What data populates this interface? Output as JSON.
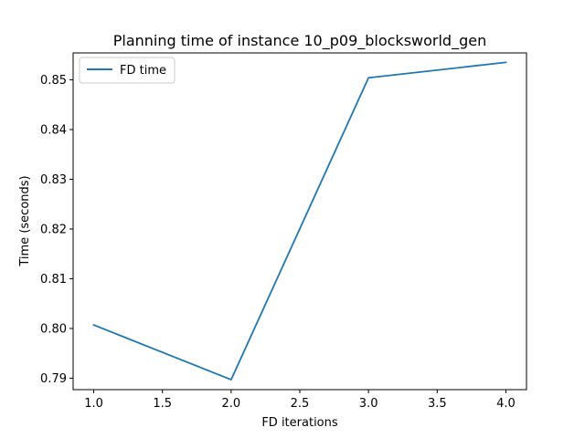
{
  "chart_data": {
    "type": "line",
    "title": "Planning time of instance 10_p09_blocksworld_gen",
    "xlabel": "FD iterations",
    "ylabel": "Time (seconds)",
    "xlim": [
      0.85,
      4.15
    ],
    "ylim": [
      0.7877,
      0.8554
    ],
    "xticks": [
      1.0,
      1.5,
      2.0,
      2.5,
      3.0,
      3.5,
      4.0
    ],
    "xtick_labels": [
      "1.0",
      "1.5",
      "2.0",
      "2.5",
      "3.0",
      "3.5",
      "4.0"
    ],
    "yticks": [
      0.79,
      0.8,
      0.81,
      0.82,
      0.83,
      0.84,
      0.85
    ],
    "ytick_labels": [
      "0.79",
      "0.80",
      "0.81",
      "0.82",
      "0.83",
      "0.84",
      "0.85"
    ],
    "grid": false,
    "legend_position": "upper-left",
    "series": [
      {
        "name": "FD time",
        "color": "#1f77b4",
        "x": [
          1.0,
          2.0,
          3.0,
          4.0
        ],
        "y": [
          0.8007,
          0.7897,
          0.8504,
          0.8535
        ]
      }
    ]
  }
}
